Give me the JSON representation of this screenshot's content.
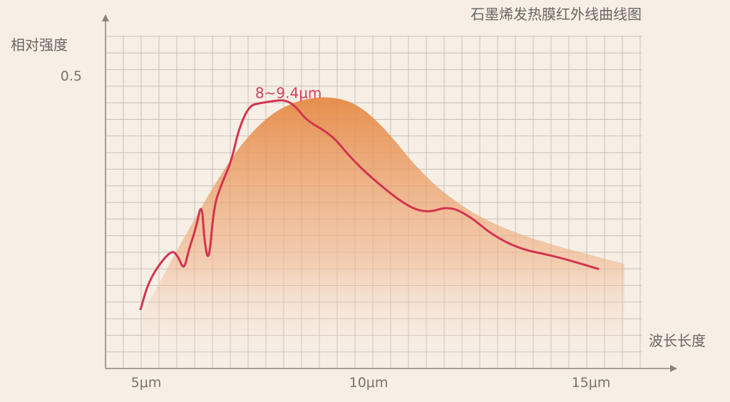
{
  "chart_data": {
    "type": "line",
    "title": "石墨烯发热膜红外线曲线图",
    "xlabel": "波长长度",
    "ylabel": "相对强度",
    "x_ticks": [
      {
        "value": 5,
        "label": "5μm"
      },
      {
        "value": 10,
        "label": "10μm"
      },
      {
        "value": 15,
        "label": "15μm"
      }
    ],
    "y_ticks": [
      {
        "value": 0.5,
        "label": "0.5"
      }
    ],
    "xlim": [
      4.1,
      16.8
    ],
    "ylim": [
      0,
      0.57
    ],
    "grid": true,
    "annotation": {
      "text": "8~9.4μm",
      "x": 8.2,
      "y": 0.48
    },
    "colors": {
      "line": "#d2344f",
      "area": "#e58a45",
      "background": "#f6efe6"
    },
    "series": [
      {
        "kind": "line",
        "points": [
          [
            4.87,
            0.1
          ],
          [
            5.08,
            0.155
          ],
          [
            5.56,
            0.204
          ],
          [
            5.72,
            0.192
          ],
          [
            5.85,
            0.167
          ],
          [
            5.96,
            0.204
          ],
          [
            6.12,
            0.24
          ],
          [
            6.25,
            0.287
          ],
          [
            6.31,
            0.216
          ],
          [
            6.41,
            0.179
          ],
          [
            6.52,
            0.276
          ],
          [
            6.68,
            0.313
          ],
          [
            6.92,
            0.355
          ],
          [
            7.08,
            0.41
          ],
          [
            7.32,
            0.45
          ],
          [
            7.56,
            0.454
          ],
          [
            7.8,
            0.457
          ],
          [
            8.13,
            0.46
          ],
          [
            8.37,
            0.448
          ],
          [
            8.61,
            0.424
          ],
          [
            9.17,
            0.4
          ],
          [
            9.57,
            0.363
          ],
          [
            10.05,
            0.327
          ],
          [
            10.85,
            0.278
          ],
          [
            11.33,
            0.266
          ],
          [
            11.81,
            0.278
          ],
          [
            12.29,
            0.26
          ],
          [
            12.77,
            0.229
          ],
          [
            13.41,
            0.204
          ],
          [
            14.21,
            0.192
          ],
          [
            15.18,
            0.17
          ]
        ]
      },
      {
        "kind": "area",
        "points": [
          [
            4.92,
            0.094
          ],
          [
            5.88,
            0.228
          ],
          [
            6.52,
            0.313
          ],
          [
            7.16,
            0.387
          ],
          [
            7.8,
            0.436
          ],
          [
            8.45,
            0.46
          ],
          [
            9.09,
            0.466
          ],
          [
            9.73,
            0.454
          ],
          [
            10.37,
            0.411
          ],
          [
            11.01,
            0.35
          ],
          [
            11.65,
            0.302
          ],
          [
            12.61,
            0.253
          ],
          [
            13.89,
            0.216
          ],
          [
            15.75,
            0.179
          ]
        ]
      }
    ]
  }
}
